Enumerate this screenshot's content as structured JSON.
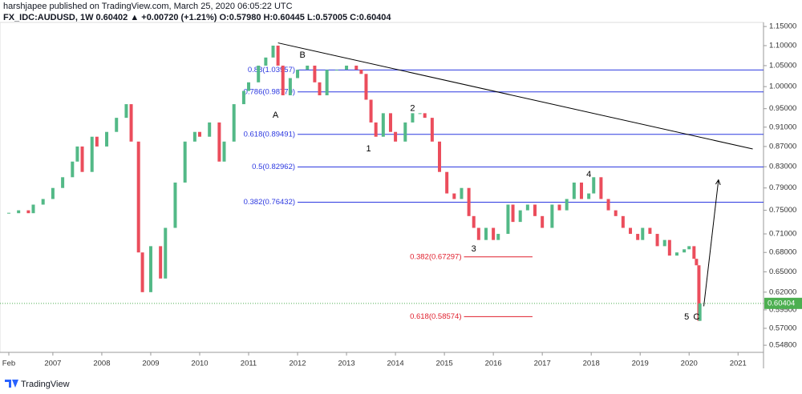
{
  "header": {
    "line1": "harshjapee published on TradingView.com, March 25, 2020 06:05:22 UTC",
    "line2": "FX_IDC:AUDUSD, 1W 0.60402 ▲ +0.00720 (+1.21%) O:0.57980 H:0.60445 L:0.57005 C:0.60404"
  },
  "footer": {
    "brand": "TradingView"
  },
  "chart_data": {
    "type": "candlestick",
    "log_scale": true,
    "up_color": "#53b987",
    "down_color": "#eb4d5c",
    "x": [
      2006.1,
      2006.3,
      2006.5,
      2006.6,
      2006.8,
      2007.0,
      2007.2,
      2007.4,
      2007.5,
      2007.6,
      2007.8,
      2007.9,
      2008.1,
      2008.3,
      2008.5,
      2008.6,
      2008.75,
      2008.83,
      2009.0,
      2009.2,
      2009.3,
      2009.5,
      2009.7,
      2009.9,
      2010.0,
      2010.2,
      2010.4,
      2010.5,
      2010.7,
      2010.9,
      2011.0,
      2011.2,
      2011.35,
      2011.5,
      2011.6,
      2011.7,
      2011.85,
      2012.0,
      2012.2,
      2012.35,
      2012.45,
      2012.6,
      2012.8,
      2013.0,
      2013.2,
      2013.3,
      2013.4,
      2013.5,
      2013.6,
      2013.75,
      2013.9,
      2014.0,
      2014.2,
      2014.35,
      2014.5,
      2014.6,
      2014.75,
      2014.9,
      2015.05,
      2015.2,
      2015.35,
      2015.5,
      2015.6,
      2015.7,
      2015.85,
      2016.0,
      2016.1,
      2016.3,
      2016.4,
      2016.55,
      2016.7,
      2016.85,
      2017.0,
      2017.2,
      2017.35,
      2017.5,
      2017.65,
      2017.8,
      2017.95,
      2018.05,
      2018.2,
      2018.35,
      2018.5,
      2018.65,
      2018.8,
      2018.95,
      2019.05,
      2019.2,
      2019.35,
      2019.5,
      2019.6,
      2019.75,
      2019.9,
      2020.0,
      2020.1,
      2020.15,
      2020.2,
      2020.22
    ],
    "close": [
      0.745,
      0.75,
      0.745,
      0.76,
      0.77,
      0.79,
      0.81,
      0.84,
      0.87,
      0.82,
      0.89,
      0.87,
      0.9,
      0.93,
      0.96,
      0.88,
      0.68,
      0.62,
      0.69,
      0.64,
      0.72,
      0.8,
      0.88,
      0.9,
      0.89,
      0.92,
      0.84,
      0.88,
      0.96,
      0.99,
      1.01,
      1.05,
      1.07,
      1.1,
      1.05,
      0.98,
      1.02,
      1.04,
      1.05,
      1.01,
      0.98,
      1.04,
      1.04,
      1.05,
      1.04,
      1.03,
      0.97,
      0.92,
      0.89,
      0.94,
      0.9,
      0.88,
      0.92,
      0.94,
      0.94,
      0.93,
      0.88,
      0.82,
      0.78,
      0.77,
      0.79,
      0.74,
      0.72,
      0.7,
      0.72,
      0.7,
      0.71,
      0.76,
      0.73,
      0.75,
      0.76,
      0.74,
      0.72,
      0.76,
      0.75,
      0.77,
      0.8,
      0.77,
      0.78,
      0.81,
      0.77,
      0.75,
      0.74,
      0.72,
      0.71,
      0.7,
      0.72,
      0.71,
      0.69,
      0.7,
      0.675,
      0.68,
      0.685,
      0.69,
      0.67,
      0.66,
      0.58,
      0.60404
    ],
    "xlim": [
      2005.92,
      2021.52
    ],
    "xticks": [
      {
        "value": 2006.1,
        "label": "Feb"
      },
      2007,
      2008,
      2009,
      2010,
      2011,
      2012,
      2013,
      2014,
      2015,
      2016,
      2017,
      2018,
      2019,
      2020,
      2021
    ],
    "ylim": [
      0.539,
      1.161
    ],
    "yticks": [
      {
        "value": 1.15,
        "label": "1.15000"
      },
      {
        "value": 1.1,
        "label": "1.10000"
      },
      {
        "value": 1.05,
        "label": "1.05000"
      },
      {
        "value": 1.0,
        "label": "1.00000"
      },
      {
        "value": 0.95,
        "label": "0.95000"
      },
      {
        "value": 0.91,
        "label": "0.91000"
      },
      {
        "value": 0.87,
        "label": "0.87000"
      },
      {
        "value": 0.83,
        "label": "0.83000"
      },
      {
        "value": 0.79,
        "label": "0.79000"
      },
      {
        "value": 0.75,
        "label": "0.75000"
      },
      {
        "value": 0.71,
        "label": "0.71000"
      },
      {
        "value": 0.68,
        "label": "0.68000"
      },
      {
        "value": 0.65,
        "label": "0.65000"
      },
      {
        "value": 0.62,
        "label": "0.62000"
      },
      {
        "value": 0.595,
        "label": "0.59500"
      },
      {
        "value": 0.57,
        "label": "0.57000"
      },
      {
        "value": 0.548,
        "label": "0.54800"
      }
    ],
    "last_price": 0.60404,
    "fib_levels": [
      {
        "value": 1.03957,
        "label": "0.88(1.03957)",
        "color": "#2c38e0",
        "x": [
          2012.0,
          2021.52
        ]
      },
      {
        "value": 0.98779,
        "label": "0.786(0.98779)",
        "color": "#2c38e0",
        "x": [
          2012.0,
          2021.52
        ]
      },
      {
        "value": 0.89491,
        "label": "0.618(0.89491)",
        "color": "#2c38e0",
        "x": [
          2012.0,
          2021.52
        ]
      },
      {
        "value": 0.82962,
        "label": "0.5(0.82962)",
        "color": "#2c38e0",
        "x": [
          2012.0,
          2021.52
        ]
      },
      {
        "value": 0.76432,
        "label": "0.382(0.76432)",
        "color": "#2c38e0",
        "x": [
          2012.0,
          2021.52
        ]
      },
      {
        "value": 0.67297,
        "label": "0.382(0.67297)",
        "color": "#e0202e",
        "x": [
          2015.4,
          2016.8
        ]
      },
      {
        "value": 0.58574,
        "label": "0.618(0.58574)",
        "color": "#e0202e",
        "x": [
          2015.4,
          2016.8
        ]
      }
    ],
    "trendline": {
      "x": [
        2011.6,
        2021.3
      ],
      "y": [
        1.107,
        0.865
      ]
    },
    "arrow": {
      "x": [
        2020.3,
        2020.6
      ],
      "y": [
        0.6,
        0.805
      ]
    },
    "waves": [
      {
        "label": "A",
        "x": 2011.55,
        "y": 0.935
      },
      {
        "label": "B",
        "x": 2012.1,
        "y": 1.075
      },
      {
        "label": "1",
        "x": 2013.45,
        "y": 0.865
      },
      {
        "label": "2",
        "x": 2014.35,
        "y": 0.95
      },
      {
        "label": "3",
        "x": 2015.6,
        "y": 0.685
      },
      {
        "label": "4",
        "x": 2017.95,
        "y": 0.815
      },
      {
        "label": "5",
        "x": 2019.95,
        "y": 0.585
      },
      {
        "label": "C",
        "x": 2020.15,
        "y": 0.585
      }
    ]
  }
}
